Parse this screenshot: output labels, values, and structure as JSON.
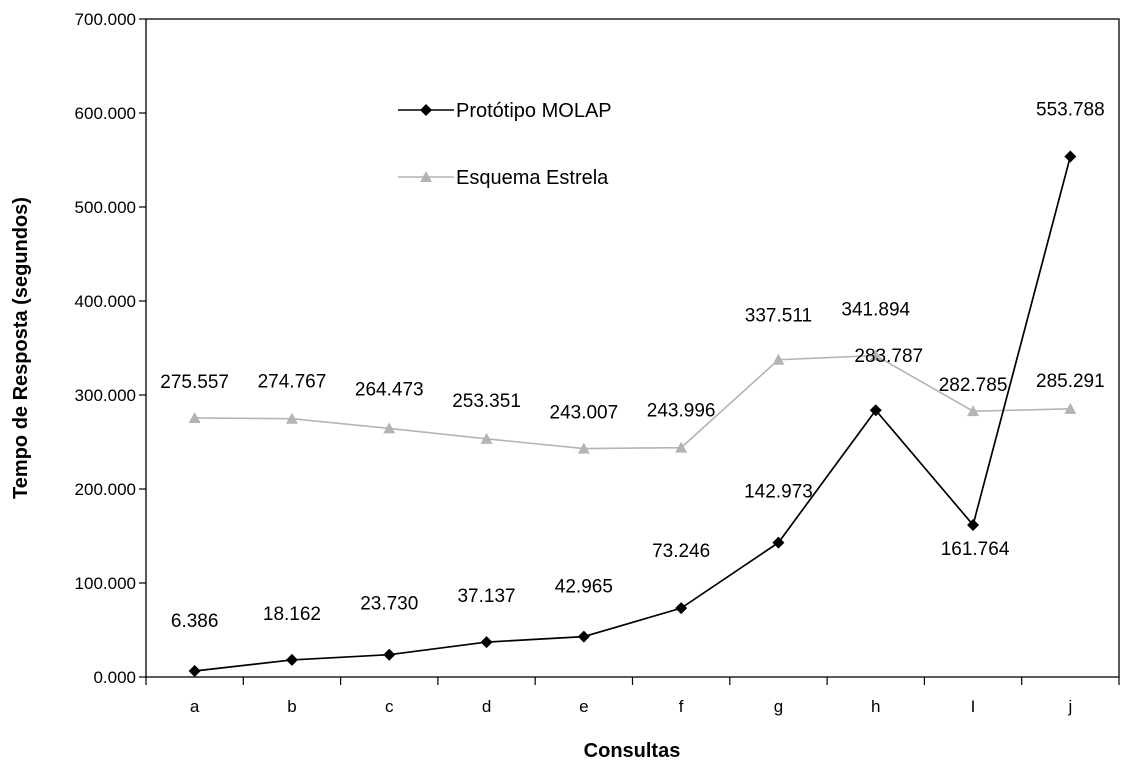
{
  "chart_data": {
    "type": "line",
    "title": "",
    "xlabel": "Consultas",
    "ylabel": "Tempo de Resposta (segundos)",
    "categories": [
      "a",
      "b",
      "c",
      "d",
      "e",
      "f",
      "g",
      "h",
      "I",
      "j"
    ],
    "ylim": [
      0,
      700
    ],
    "y_ticks": [
      0,
      100,
      200,
      300,
      400,
      500,
      600,
      700
    ],
    "y_tick_labels": [
      "0.000",
      "100.000",
      "200.000",
      "300.000",
      "400.000",
      "500.000",
      "600.000",
      "700.000"
    ],
    "grid": false,
    "legend_position": "top-center",
    "series": [
      {
        "name": "Protótipo MOLAP",
        "color": "#000000",
        "marker": "diamond",
        "values": [
          6.386,
          18.162,
          23.73,
          37.137,
          42.965,
          73.246,
          142.973,
          283.787,
          161.764,
          553.788
        ],
        "value_labels": [
          "6.386",
          "18.162",
          "23.730",
          "37.137",
          "42.965",
          "73.246",
          "142.973",
          "283.787",
          "161.764",
          "553.788"
        ]
      },
      {
        "name": "Esquema Estrela",
        "color": "#b4b4b4",
        "marker": "triangle",
        "values": [
          275.557,
          274.767,
          264.473,
          253.351,
          243.007,
          243.996,
          337.511,
          341.894,
          282.785,
          285.291
        ],
        "value_labels": [
          "275.557",
          "274.767",
          "264.473",
          "253.351",
          "243.007",
          "243.996",
          "337.511",
          "341.894",
          "282.785",
          "285.291"
        ]
      }
    ]
  }
}
